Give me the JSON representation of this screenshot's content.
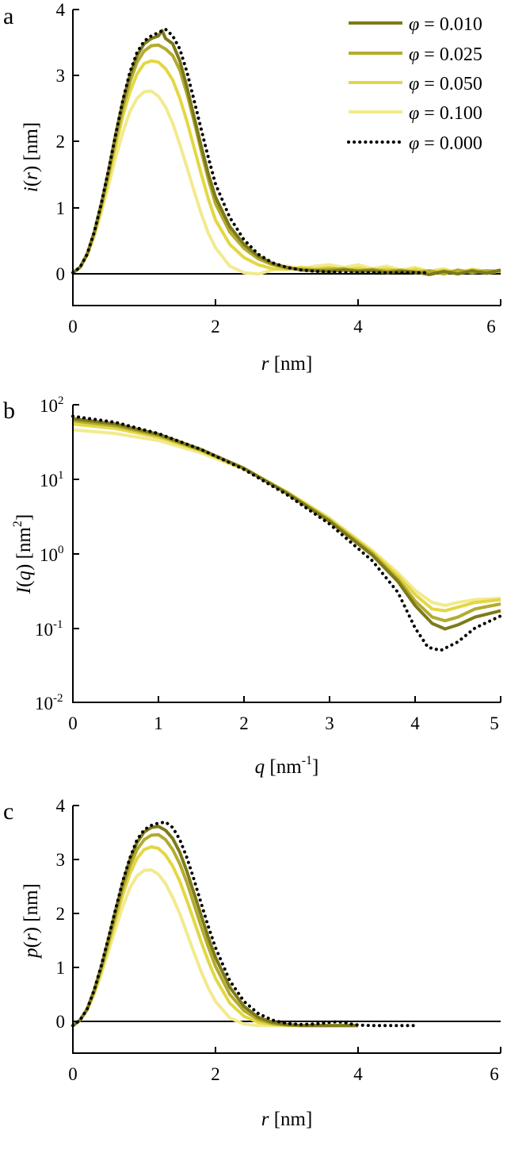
{
  "colors": {
    "phi_0_010": "#7d7a1a",
    "phi_0_025": "#b3ab2e",
    "phi_0_050": "#e3d743",
    "phi_0_100": "#f2ea8d",
    "phi_0_000": "#000000"
  },
  "legend_labels": {
    "phi_0_010": "0.010",
    "phi_0_025": "0.025",
    "phi_0_050": "0.050",
    "phi_0_100": "0.100",
    "phi_0_000": "0.000"
  },
  "panels": {
    "a": {
      "letter": "a",
      "xlabel_var": "r",
      "xlabel_unit": "[nm]",
      "ylabel_var": "i",
      "ylabel_arg": "r",
      "ylabel_unit": "[nm]"
    },
    "b": {
      "letter": "b",
      "xlabel_var": "q",
      "xlabel_unit_pre": "[nm",
      "xlabel_unit_sup": "-1",
      "xlabel_unit_post": "]",
      "ylabel_var": "I",
      "ylabel_arg": "q",
      "ylabel_unit_pre": "[nm",
      "ylabel_unit_sup": "2",
      "ylabel_unit_post": "]"
    },
    "c": {
      "letter": "c",
      "xlabel_var": "r",
      "xlabel_unit": "[nm]",
      "ylabel_var": "p",
      "ylabel_arg": "r",
      "ylabel_unit": "[nm]"
    }
  },
  "chart_data": [
    {
      "type": "line",
      "panel": "a",
      "xlim": [
        0,
        6
      ],
      "ylim": [
        -0.5,
        4
      ],
      "xticks": [
        "0",
        "2",
        "4",
        "6"
      ],
      "yticks": [
        "0",
        "1",
        "2",
        "3",
        "4"
      ],
      "legend": "top-right",
      "series": [
        {
          "key": "phi_0_010",
          "name": "φ = 0.010",
          "x": [
            0,
            0.1,
            0.2,
            0.3,
            0.4,
            0.5,
            0.6,
            0.7,
            0.8,
            0.9,
            1.0,
            1.1,
            1.2,
            1.25,
            1.3,
            1.4,
            1.5,
            1.6,
            1.7,
            1.8,
            1.9,
            2.0,
            2.2,
            2.4,
            2.6,
            2.8,
            3.0,
            3.2,
            3.4,
            3.6,
            3.8,
            4.0,
            4.2,
            4.4,
            4.6,
            4.8,
            5.0,
            5.2,
            5.4,
            5.6,
            5.8,
            6.0
          ],
          "y": [
            0,
            0.08,
            0.28,
            0.62,
            1.05,
            1.55,
            2.1,
            2.6,
            3.0,
            3.3,
            3.48,
            3.56,
            3.6,
            3.68,
            3.56,
            3.48,
            3.22,
            2.82,
            2.37,
            1.92,
            1.5,
            1.15,
            0.7,
            0.43,
            0.25,
            0.14,
            0.08,
            0.04,
            0.03,
            0.02,
            0.04,
            0.02,
            0.03,
            0.0,
            0.02,
            0.01,
            -0.03,
            0.02,
            -0.02,
            0.03,
            -0.01,
            0.04
          ]
        },
        {
          "key": "phi_0_025",
          "name": "φ = 0.025",
          "x": [
            0,
            0.1,
            0.2,
            0.3,
            0.4,
            0.5,
            0.6,
            0.7,
            0.8,
            0.9,
            1.0,
            1.1,
            1.2,
            1.3,
            1.4,
            1.5,
            1.6,
            1.7,
            1.8,
            1.9,
            2.0,
            2.2,
            2.4,
            2.6,
            2.8,
            3.0,
            3.2,
            3.4,
            3.6,
            3.8,
            4.0,
            4.2,
            4.4,
            4.6,
            4.8,
            5.0,
            5.2,
            5.4,
            5.6,
            5.8,
            6.0
          ],
          "y": [
            0,
            0.08,
            0.28,
            0.6,
            1.02,
            1.5,
            2.02,
            2.5,
            2.9,
            3.2,
            3.37,
            3.45,
            3.46,
            3.4,
            3.3,
            3.08,
            2.72,
            2.3,
            1.85,
            1.42,
            1.05,
            0.62,
            0.37,
            0.21,
            0.12,
            0.07,
            0.05,
            0.04,
            0.05,
            0.06,
            0.03,
            0.05,
            0.02,
            0.04,
            0.0,
            0.03,
            -0.02,
            0.04,
            0.0,
            0.03,
            0.02
          ]
        },
        {
          "key": "phi_0_050",
          "name": "φ = 0.050",
          "x": [
            0,
            0.1,
            0.2,
            0.3,
            0.4,
            0.5,
            0.6,
            0.7,
            0.8,
            0.9,
            1.0,
            1.1,
            1.2,
            1.3,
            1.4,
            1.5,
            1.6,
            1.7,
            1.8,
            1.9,
            2.0,
            2.2,
            2.4,
            2.6,
            2.8,
            3.0,
            3.2,
            3.4,
            3.6,
            3.8,
            4.0,
            4.2,
            4.4,
            4.6,
            4.8,
            5.0,
            5.2,
            5.4,
            5.6,
            5.8,
            6.0
          ],
          "y": [
            0,
            0.08,
            0.27,
            0.58,
            0.98,
            1.43,
            1.92,
            2.38,
            2.75,
            3.02,
            3.18,
            3.22,
            3.2,
            3.1,
            2.93,
            2.65,
            2.3,
            1.9,
            1.5,
            1.12,
            0.8,
            0.43,
            0.23,
            0.12,
            0.06,
            0.05,
            0.08,
            0.06,
            0.08,
            0.04,
            0.07,
            0.03,
            0.06,
            0.02,
            0.05,
            0.01,
            0.04,
            0.0,
            0.05,
            0.02,
            0.03
          ]
        },
        {
          "key": "phi_0_100",
          "name": "φ = 0.100",
          "x": [
            0,
            0.1,
            0.2,
            0.3,
            0.4,
            0.5,
            0.6,
            0.7,
            0.8,
            0.9,
            1.0,
            1.1,
            1.2,
            1.3,
            1.4,
            1.5,
            1.6,
            1.7,
            1.8,
            1.9,
            2.0,
            2.2,
            2.4,
            2.6,
            2.8,
            3.0,
            3.2,
            3.4,
            3.6,
            3.8,
            4.0,
            4.2,
            4.4,
            4.6,
            4.8,
            5.0,
            5.2,
            5.4,
            5.6,
            5.8,
            6.0
          ],
          "y": [
            0,
            0.08,
            0.26,
            0.55,
            0.92,
            1.32,
            1.75,
            2.13,
            2.45,
            2.65,
            2.75,
            2.76,
            2.68,
            2.52,
            2.27,
            1.95,
            1.6,
            1.24,
            0.9,
            0.6,
            0.38,
            0.1,
            0.0,
            -0.02,
            0.04,
            0.1,
            0.06,
            0.1,
            0.12,
            0.08,
            0.12,
            0.06,
            0.1,
            0.04,
            0.08,
            0.02,
            0.06,
            0.0,
            0.05,
            -0.01,
            0.03
          ]
        },
        {
          "key": "phi_0_000",
          "name": "φ = 0.000",
          "dotted": true,
          "x": [
            0,
            0.1,
            0.2,
            0.3,
            0.4,
            0.5,
            0.6,
            0.7,
            0.8,
            0.9,
            1.0,
            1.1,
            1.2,
            1.3,
            1.4,
            1.5,
            1.6,
            1.7,
            1.8,
            1.9,
            2.0,
            2.2,
            2.4,
            2.6,
            2.8,
            3.0,
            3.2,
            3.4,
            3.6,
            3.8,
            4.0,
            4.2,
            4.4,
            4.6,
            4.8,
            5.0
          ],
          "y": [
            0,
            0.08,
            0.28,
            0.62,
            1.06,
            1.56,
            2.1,
            2.62,
            3.05,
            3.35,
            3.52,
            3.6,
            3.65,
            3.7,
            3.6,
            3.4,
            3.05,
            2.62,
            2.18,
            1.75,
            1.35,
            0.84,
            0.5,
            0.28,
            0.15,
            0.08,
            0.04,
            0.02,
            0.01,
            0.0,
            0.0,
            0.0,
            0.0,
            0.0,
            0.0,
            0.0
          ]
        }
      ]
    },
    {
      "type": "line",
      "panel": "b",
      "xlim": [
        0,
        5
      ],
      "ylim": [
        0.01,
        100
      ],
      "yscale": "log",
      "xticks": [
        "0",
        "1",
        "2",
        "3",
        "4",
        "5"
      ],
      "yticks": [
        {
          "base": "10",
          "exp": "-2"
        },
        {
          "base": "10",
          "exp": "-1"
        },
        {
          "base": "10",
          "exp": "0"
        },
        {
          "base": "10",
          "exp": "1"
        },
        {
          "base": "10",
          "exp": "2"
        }
      ],
      "series": [
        {
          "key": "phi_0_010",
          "x": [
            0,
            0.5,
            1,
            1.5,
            2,
            2.5,
            3,
            3.5,
            3.8,
            4.0,
            4.2,
            4.35,
            4.5,
            4.7,
            5.0
          ],
          "y": [
            65,
            55,
            40,
            25,
            14,
            6.5,
            2.7,
            0.95,
            0.42,
            0.2,
            0.115,
            0.097,
            0.11,
            0.14,
            0.17
          ]
        },
        {
          "key": "phi_0_025",
          "x": [
            0,
            0.5,
            1,
            1.5,
            2,
            2.5,
            3,
            3.5,
            3.8,
            4.0,
            4.2,
            4.35,
            4.5,
            4.7,
            5.0
          ],
          "y": [
            61,
            52,
            38.5,
            24.5,
            14,
            6.6,
            2.8,
            1.0,
            0.45,
            0.23,
            0.14,
            0.125,
            0.14,
            0.18,
            0.21
          ]
        },
        {
          "key": "phi_0_050",
          "x": [
            0,
            0.5,
            1,
            1.5,
            2,
            2.5,
            3,
            3.5,
            3.8,
            4.0,
            4.2,
            4.35,
            4.5,
            4.7,
            5.0
          ],
          "y": [
            55,
            48,
            36.5,
            24,
            14,
            6.7,
            2.9,
            1.05,
            0.5,
            0.28,
            0.18,
            0.17,
            0.19,
            0.22,
            0.24
          ]
        },
        {
          "key": "phi_0_100",
          "x": [
            0,
            0.5,
            1,
            1.5,
            2,
            2.5,
            3,
            3.5,
            3.8,
            4.0,
            4.2,
            4.35,
            4.5,
            4.7,
            5.0
          ],
          "y": [
            46,
            41,
            33,
            22.5,
            13.5,
            6.8,
            3.0,
            1.1,
            0.55,
            0.32,
            0.22,
            0.2,
            0.22,
            0.24,
            0.25
          ]
        },
        {
          "key": "phi_0_000",
          "dotted": true,
          "x": [
            0,
            0.5,
            1,
            1.5,
            2,
            2.5,
            3,
            3.5,
            3.8,
            4.0,
            4.15,
            4.3,
            4.5,
            4.7,
            5.0
          ],
          "y": [
            70,
            58,
            41,
            25,
            13.5,
            6.2,
            2.5,
            0.8,
            0.3,
            0.1,
            0.055,
            0.05,
            0.065,
            0.1,
            0.145
          ]
        }
      ]
    },
    {
      "type": "line",
      "panel": "c",
      "xlim": [
        0,
        6
      ],
      "ylim": [
        -0.5,
        4
      ],
      "xticks": [
        "0",
        "2",
        "4",
        "6"
      ],
      "yticks": [
        "0",
        "1",
        "2",
        "3",
        "4"
      ],
      "series": [
        {
          "key": "phi_0_010",
          "x": [
            0,
            0.1,
            0.2,
            0.3,
            0.4,
            0.5,
            0.6,
            0.7,
            0.8,
            0.9,
            1.0,
            1.1,
            1.2,
            1.3,
            1.4,
            1.5,
            1.6,
            1.7,
            1.8,
            1.9,
            2.0,
            2.2,
            2.4,
            2.6,
            2.8,
            3.0,
            3.2,
            3.4,
            3.6,
            3.8,
            4.0
          ],
          "y": [
            0,
            0.1,
            0.3,
            0.65,
            1.08,
            1.58,
            2.1,
            2.6,
            3.02,
            3.33,
            3.52,
            3.6,
            3.62,
            3.55,
            3.4,
            3.15,
            2.8,
            2.4,
            2.0,
            1.6,
            1.24,
            0.7,
            0.35,
            0.15,
            0.06,
            0.02,
            0.0,
            0.0,
            0.0,
            0.0,
            0.0
          ]
        },
        {
          "key": "phi_0_025",
          "x": [
            0,
            0.1,
            0.2,
            0.3,
            0.4,
            0.5,
            0.6,
            0.7,
            0.8,
            0.9,
            1.0,
            1.1,
            1.2,
            1.3,
            1.4,
            1.5,
            1.6,
            1.7,
            1.8,
            1.9,
            2.0,
            2.2,
            2.4,
            2.6,
            2.8,
            3.0,
            3.2,
            3.4,
            3.6,
            3.8,
            4.0
          ],
          "y": [
            0,
            0.1,
            0.3,
            0.63,
            1.05,
            1.52,
            2.02,
            2.5,
            2.9,
            3.2,
            3.38,
            3.46,
            3.47,
            3.38,
            3.2,
            2.94,
            2.6,
            2.2,
            1.8,
            1.43,
            1.08,
            0.57,
            0.27,
            0.11,
            0.04,
            0.01,
            0.0,
            0.0,
            0.0,
            0.0,
            0.0
          ]
        },
        {
          "key": "phi_0_050",
          "x": [
            0,
            0.1,
            0.2,
            0.3,
            0.4,
            0.5,
            0.6,
            0.7,
            0.8,
            0.9,
            1.0,
            1.1,
            1.2,
            1.3,
            1.4,
            1.5,
            1.6,
            1.7,
            1.8,
            1.9,
            2.0,
            2.2,
            2.4,
            2.6,
            2.8,
            3.0,
            3.2,
            3.4,
            3.6,
            3.8,
            4.0
          ],
          "y": [
            0,
            0.1,
            0.29,
            0.6,
            1.0,
            1.45,
            1.92,
            2.38,
            2.76,
            3.04,
            3.2,
            3.25,
            3.22,
            3.1,
            2.9,
            2.62,
            2.27,
            1.9,
            1.52,
            1.17,
            0.86,
            0.41,
            0.17,
            0.06,
            0.02,
            0.0,
            0.0,
            0.0,
            0.0,
            0.0,
            0.0
          ]
        },
        {
          "key": "phi_0_100",
          "x": [
            0,
            0.1,
            0.2,
            0.3,
            0.4,
            0.5,
            0.6,
            0.7,
            0.8,
            0.9,
            1.0,
            1.1,
            1.2,
            1.3,
            1.4,
            1.5,
            1.6,
            1.7,
            1.8,
            1.9,
            2.0,
            2.2,
            2.4,
            2.6,
            2.8,
            3.0,
            3.2,
            3.4,
            3.6,
            3.8,
            4.0
          ],
          "y": [
            0,
            0.1,
            0.28,
            0.57,
            0.94,
            1.35,
            1.77,
            2.17,
            2.5,
            2.72,
            2.82,
            2.83,
            2.75,
            2.58,
            2.33,
            2.03,
            1.68,
            1.32,
            0.98,
            0.68,
            0.44,
            0.14,
            0.03,
            0.0,
            0.0,
            0.0,
            0.0,
            0.0,
            0.0,
            0.0,
            0.0
          ]
        },
        {
          "key": "phi_0_000",
          "dotted": true,
          "x": [
            0,
            0.1,
            0.2,
            0.3,
            0.4,
            0.5,
            0.6,
            0.7,
            0.8,
            0.9,
            1.0,
            1.1,
            1.2,
            1.3,
            1.4,
            1.5,
            1.6,
            1.7,
            1.8,
            1.9,
            2.0,
            2.2,
            2.4,
            2.6,
            2.8,
            3.0,
            3.2,
            3.4,
            3.6,
            3.7,
            3.8,
            3.9,
            4.0,
            4.2,
            4.4,
            4.6,
            4.8
          ],
          "y": [
            0,
            0.1,
            0.3,
            0.65,
            1.1,
            1.6,
            2.12,
            2.63,
            3.05,
            3.38,
            3.56,
            3.64,
            3.68,
            3.7,
            3.6,
            3.38,
            3.05,
            2.65,
            2.22,
            1.8,
            1.42,
            0.82,
            0.44,
            0.22,
            0.1,
            0.04,
            0.02,
            0.03,
            0.06,
            0.07,
            0.06,
            0.03,
            0.01,
            0.0,
            0.0,
            0.0,
            0.0
          ]
        }
      ]
    }
  ]
}
